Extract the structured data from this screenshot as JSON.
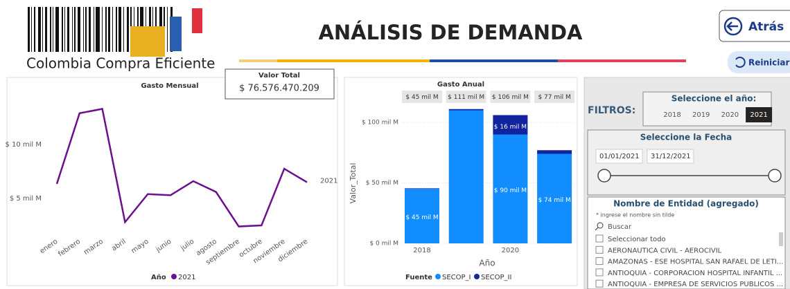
{
  "header": {
    "logo_text": "Colombia Compra Eficiente",
    "title": "ANÁLISIS DE DEMANDA",
    "back_button": "Atrás",
    "reset_button": "Reiniciar"
  },
  "kpi": {
    "label": "Valor Total",
    "value": "$ 76.576.470.209"
  },
  "filters": {
    "label": "FILTROS:",
    "year_title": "Seleccione el año:",
    "years": [
      "2018",
      "2019",
      "2020",
      "2021"
    ],
    "selected_year_index": 3,
    "date_title": "Seleccione la Fecha",
    "start_date": "01/01/2021",
    "end_date": "31/12/2021",
    "entity_title": "Nombre de Entidad (agregado)",
    "entity_hint": "* ingrese el nombre sin tilde",
    "search_placeholder": "Buscar",
    "entity_items": [
      "Seleccionar todo",
      "AERONAUTICA CIVIL - AEROCIVIL",
      "AMAZONAS - ESE HOSPITAL SAN RAFAEL DE LETI...",
      "ANTIOQUIA - CORPORACION HOSPITAL INFANTIL ...",
      "ANTIOQUIA - EMPRESA DE SERVICIOS PUBLICOS ..."
    ]
  },
  "chart_data": [
    {
      "type": "line",
      "title": "Gasto Mensual",
      "legend_title": "Año",
      "categories": [
        "enero",
        "febrero",
        "marzo",
        "abril",
        "mayo",
        "junio",
        "julio",
        "agosto",
        "septiembre",
        "octubre",
        "noviembre",
        "diciembre"
      ],
      "series": [
        {
          "name": "2021",
          "color": "#6b0f8e",
          "values": [
            6.35,
            12.9,
            13.3,
            2.8,
            5.4,
            5.3,
            6.6,
            5.6,
            2.4,
            2.5,
            7.75,
            6.5
          ]
        }
      ],
      "ylim": [
        1.5,
        14.5
      ],
      "yticks": [
        {
          "value": 5,
          "label": "$ 5 mil M"
        },
        {
          "value": 10,
          "label": "$ 10 mil M"
        }
      ],
      "grid": false
    },
    {
      "type": "bar",
      "stacked": true,
      "title": "Gasto Anual",
      "x_label": "Año",
      "y_label": "Valor_Total",
      "legend_title": "Fuente",
      "categories": [
        "2018",
        null,
        "2020",
        null
      ],
      "total_labels": [
        "$ 45 mil M",
        "$ 111 mil M",
        "$ 106 mil M",
        "$ 77 mil M"
      ],
      "series": [
        {
          "name": "SECOP_I",
          "color": "#118dff",
          "values": [
            45,
            110,
            90,
            74
          ],
          "value_labels": [
            "$ 45 mil M",
            null,
            "$ 90 mil M",
            "$ 74 mil M"
          ]
        },
        {
          "name": "SECOP_II",
          "color": "#12239e",
          "values": [
            0.5,
            1,
            16,
            3
          ],
          "value_labels": [
            null,
            null,
            "$ 16 mil M",
            null
          ]
        }
      ],
      "ylim": [
        0,
        115
      ],
      "yticks": [
        {
          "value": 0,
          "label": "$ 0 mil M"
        },
        {
          "value": 50,
          "label": "$ 50 mil M"
        },
        {
          "value": 100,
          "label": "$ 100 mil M"
        }
      ],
      "grid": true
    }
  ]
}
